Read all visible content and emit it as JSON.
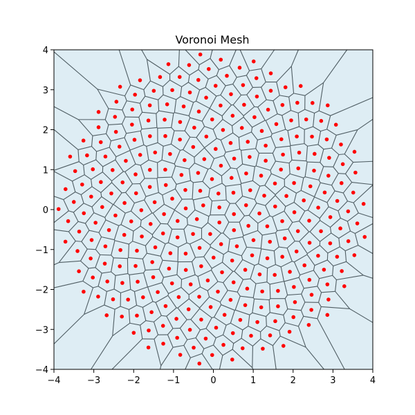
{
  "chart_data": {
    "type": "scatter",
    "title": "Voronoi Mesh",
    "xlabel": "",
    "ylabel": "",
    "xlim": [
      -4,
      4
    ],
    "ylim": [
      -4,
      4
    ],
    "xticks": [
      -4,
      -3,
      -2,
      -1,
      0,
      1,
      2,
      3,
      4
    ],
    "yticks": [
      -4,
      -3,
      -2,
      -1,
      0,
      1,
      2,
      3,
      4
    ],
    "xtick_labels": [
      "−4",
      "−3",
      "−2",
      "−1",
      "0",
      "1",
      "2",
      "3",
      "4"
    ],
    "ytick_labels": [
      "−4",
      "−3",
      "−2",
      "−1",
      "0",
      "1",
      "2",
      "3",
      "4"
    ],
    "grid": false,
    "colors": {
      "cell_fill": "#deedf4",
      "cell_edge": "#4f5d63",
      "points": "#ff0000"
    },
    "series": [
      {
        "marker": "point",
        "layout": "sunflower",
        "count": 300,
        "max_radius": 3.9,
        "rotation_deg": 20,
        "aspect": 1.0
      }
    ]
  }
}
